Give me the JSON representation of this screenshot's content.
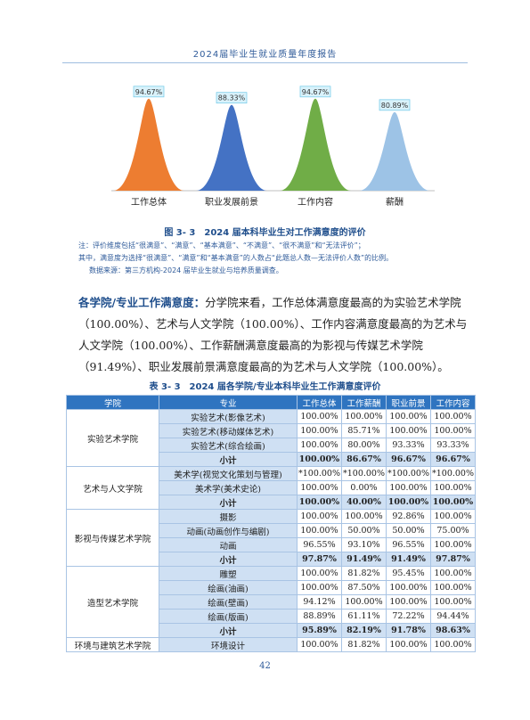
{
  "header": {
    "title": "2024届毕业生就业质量年度报告"
  },
  "chart_data": {
    "type": "area",
    "categories": [
      "工作总体",
      "职业发展前景",
      "工作内容",
      "薪酬"
    ],
    "values": [
      94.67,
      88.33,
      94.67,
      80.89
    ],
    "value_labels": [
      "94.67%",
      "88.33%",
      "94.67%",
      "80.89%"
    ],
    "colors": [
      "#ed7d31",
      "#4472c4",
      "#70ad47",
      "#9dc3e6"
    ],
    "ylim": [
      0,
      100
    ]
  },
  "figure": {
    "caption": "图 3- 3　2024 届本科毕业生对工作满意度的评价"
  },
  "notes": {
    "line1": "注：评价维度包括“很满意”、“满意”、“基本满意”、“不满意”、“很不满意”和“无法评价”；",
    "line2": "其中，满意度为选择“很满意”、“满意”和“基本满意”的人数占“此题总人数—无法评价人数”的比例。",
    "line3": "数据来源：第三方机构-2024 届毕业生就业与培养质量调查。"
  },
  "paragraph": {
    "lead": "各学院/专业工作满意度：",
    "text": "分学院来看，工作总体满意度最高的为实验艺术学院（100.00%）、艺术与人文学院（100.00%）、工作内容满意度最高的为艺术与人文学院（100.00%）、工作薪酬满意度最高的为影视与传媒艺术学院（91.49%）、职业发展前景满意度最高的为艺术与人文学院（100.00%）。"
  },
  "table": {
    "caption": "表 3- 3　2024 届各学院/专业本科毕业生工作满意度评价",
    "headers": [
      "学院",
      "专业",
      "工作总体",
      "工作薪酬",
      "职业前景",
      "工作内容"
    ],
    "groups": [
      {
        "college": "实验艺术学院",
        "rows": [
          {
            "major": "实验艺术(影像艺术)",
            "v": [
              "100.00%",
              "100.00%",
              "100.00%",
              "100.00%"
            ]
          },
          {
            "major": "实验艺术(移动媒体艺术)",
            "v": [
              "100.00%",
              "85.71%",
              "100.00%",
              "100.00%"
            ]
          },
          {
            "major": "实验艺术(综合绘画)",
            "v": [
              "100.00%",
              "80.00%",
              "93.33%",
              "93.33%"
            ]
          },
          {
            "major": "小计",
            "v": [
              "100.00%",
              "86.67%",
              "96.67%",
              "96.67%"
            ],
            "subtotal": true
          }
        ]
      },
      {
        "college": "艺术与人文学院",
        "rows": [
          {
            "major": "美术学(视觉文化策划与管理)",
            "v": [
              "*100.00%",
              "*100.00%",
              "*100.00%",
              "*100.00%"
            ]
          },
          {
            "major": "美术学(美术史论)",
            "v": [
              "100.00%",
              "0.00%",
              "100.00%",
              "100.00%"
            ]
          },
          {
            "major": "小计",
            "v": [
              "100.00%",
              "40.00%",
              "100.00%",
              "100.00%"
            ],
            "subtotal": true
          }
        ]
      },
      {
        "college": "影视与传媒艺术学院",
        "rows": [
          {
            "major": "摄影",
            "v": [
              "100.00%",
              "100.00%",
              "92.86%",
              "100.00%"
            ]
          },
          {
            "major": "动画(动画创作与编剧)",
            "v": [
              "100.00%",
              "50.00%",
              "50.00%",
              "75.00%"
            ]
          },
          {
            "major": "动画",
            "v": [
              "96.55%",
              "93.10%",
              "96.55%",
              "100.00%"
            ]
          },
          {
            "major": "小计",
            "v": [
              "97.87%",
              "91.49%",
              "91.49%",
              "97.87%"
            ],
            "subtotal": true
          }
        ]
      },
      {
        "college": "造型艺术学院",
        "rows": [
          {
            "major": "雕塑",
            "v": [
              "100.00%",
              "81.82%",
              "95.45%",
              "100.00%"
            ]
          },
          {
            "major": "绘画(油画)",
            "v": [
              "100.00%",
              "87.50%",
              "100.00%",
              "100.00%"
            ]
          },
          {
            "major": "绘画(壁画)",
            "v": [
              "94.12%",
              "100.00%",
              "100.00%",
              "100.00%"
            ]
          },
          {
            "major": "绘画(版画)",
            "v": [
              "88.89%",
              "61.11%",
              "72.22%",
              "94.44%"
            ]
          },
          {
            "major": "小计",
            "v": [
              "95.89%",
              "82.19%",
              "91.78%",
              "98.63%"
            ],
            "subtotal": true
          }
        ]
      },
      {
        "college": "环境与建筑艺术学院",
        "rows": [
          {
            "major": "环境设计",
            "v": [
              "100.00%",
              "81.82%",
              "100.00%",
              "100.00%"
            ]
          }
        ]
      }
    ]
  },
  "page": {
    "number": "42"
  }
}
